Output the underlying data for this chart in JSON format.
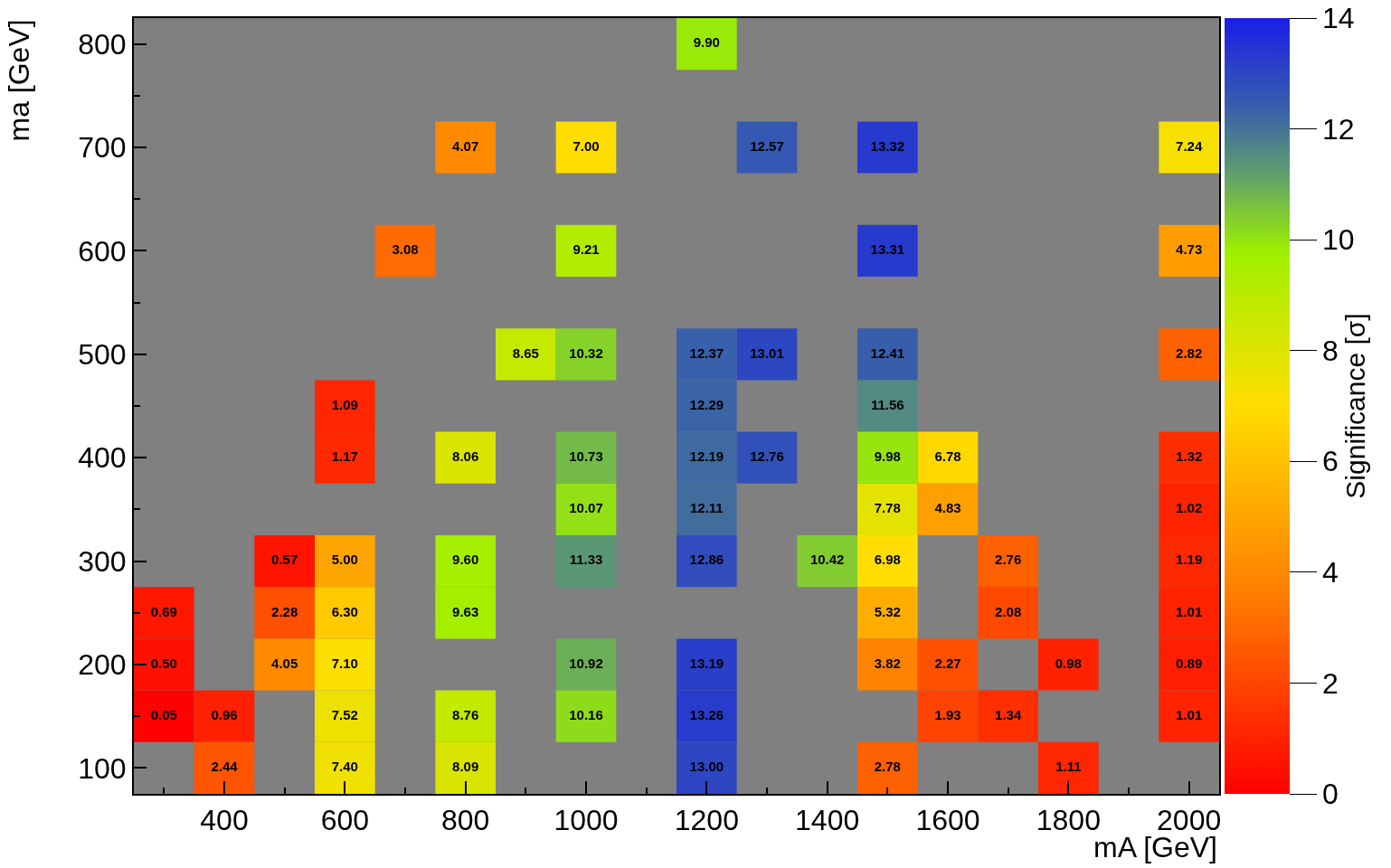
{
  "chart_data": {
    "type": "heatmap",
    "xlabel": "mA [GeV]",
    "ylabel": "ma [GeV]",
    "clabel": "Significance [σ]",
    "x": [
      300,
      400,
      500,
      600,
      700,
      800,
      900,
      1000,
      1100,
      1200,
      1300,
      1400,
      1500,
      1600,
      1700,
      1800,
      1900,
      2000
    ],
    "y": [
      800,
      700,
      600,
      500,
      450,
      400,
      350,
      300,
      250,
      200,
      150,
      100
    ],
    "xlim": [
      250,
      2050
    ],
    "ylim": [
      75,
      825
    ],
    "xticks": [
      400,
      600,
      800,
      1000,
      1200,
      1400,
      1600,
      1800,
      2000
    ],
    "yticks": [
      100,
      200,
      300,
      400,
      500,
      600,
      700,
      800
    ],
    "clim": [
      0,
      14
    ],
    "cticks": [
      0,
      2,
      4,
      6,
      8,
      10,
      12,
      14
    ],
    "data_labels": true,
    "cell_labels": [
      [
        null,
        null,
        null,
        null,
        null,
        null,
        null,
        null,
        null,
        "9.90",
        null,
        null,
        null,
        null,
        null,
        null,
        null,
        null
      ],
      [
        null,
        null,
        null,
        null,
        null,
        "4.07",
        null,
        "7.00",
        null,
        null,
        "12.57",
        null,
        "13.32",
        null,
        null,
        null,
        null,
        "7.24"
      ],
      [
        null,
        null,
        null,
        null,
        "3.08",
        null,
        null,
        "9.21",
        null,
        null,
        null,
        null,
        "13.31",
        null,
        null,
        null,
        null,
        "4.73"
      ],
      [
        null,
        null,
        null,
        null,
        null,
        null,
        "8.65",
        "10.32",
        null,
        "12.37",
        "13.01",
        null,
        "12.41",
        null,
        null,
        null,
        null,
        "2.82"
      ],
      [
        null,
        null,
        null,
        "1.09",
        null,
        null,
        null,
        null,
        null,
        "12.29",
        null,
        null,
        "11.56",
        null,
        null,
        null,
        null,
        null
      ],
      [
        null,
        null,
        null,
        "1.17",
        null,
        "8.06",
        null,
        "10.73",
        null,
        "12.19",
        "12.76",
        null,
        "9.98",
        "6.78",
        null,
        null,
        null,
        "1.32"
      ],
      [
        null,
        null,
        null,
        null,
        null,
        null,
        null,
        "10.07",
        null,
        "12.11",
        null,
        null,
        "7.78",
        "4.83",
        null,
        null,
        null,
        "1.02"
      ],
      [
        null,
        null,
        "0.57",
        "5.00",
        null,
        "9.60",
        null,
        "11.33",
        null,
        "12.86",
        null,
        "10.42",
        "6.98",
        null,
        "2.76",
        null,
        null,
        "1.19"
      ],
      [
        "0.69",
        null,
        "2.28",
        "6.30",
        null,
        "9.63",
        null,
        null,
        null,
        null,
        null,
        null,
        "5.32",
        null,
        "2.08",
        null,
        null,
        "1.01"
      ],
      [
        "0.50",
        null,
        "4.05",
        "7.10",
        null,
        null,
        null,
        "10.92",
        null,
        "13.19",
        null,
        null,
        "3.82",
        "2.27",
        null,
        "0.98",
        null,
        "0.89"
      ],
      [
        "0.05",
        "0.96",
        null,
        "7.52",
        null,
        "8.76",
        null,
        "10.16",
        null,
        "13.26",
        null,
        null,
        null,
        "1.93",
        "1.34",
        null,
        null,
        "1.01"
      ],
      [
        null,
        "2.44",
        null,
        "7.40",
        null,
        "8.09",
        null,
        null,
        null,
        "13.00",
        null,
        null,
        "2.78",
        null,
        null,
        "1.11",
        null,
        null
      ]
    ],
    "cells": [
      [
        null,
        null,
        null,
        null,
        null,
        null,
        null,
        null,
        null,
        9.9,
        null,
        null,
        null,
        null,
        null,
        null,
        null,
        null
      ],
      [
        null,
        null,
        null,
        null,
        null,
        4.07,
        null,
        7.0,
        null,
        null,
        12.57,
        null,
        13.32,
        null,
        null,
        null,
        null,
        7.24
      ],
      [
        null,
        null,
        null,
        null,
        3.08,
        null,
        null,
        9.21,
        null,
        null,
        null,
        null,
        13.31,
        null,
        null,
        null,
        null,
        4.73
      ],
      [
        null,
        null,
        null,
        null,
        null,
        null,
        8.65,
        10.32,
        null,
        12.37,
        13.01,
        null,
        12.41,
        null,
        null,
        null,
        null,
        2.82
      ],
      [
        null,
        null,
        null,
        1.09,
        null,
        null,
        null,
        null,
        null,
        12.29,
        null,
        null,
        11.56,
        null,
        null,
        null,
        null,
        null
      ],
      [
        null,
        null,
        null,
        1.17,
        null,
        8.06,
        null,
        10.73,
        null,
        12.19,
        12.76,
        null,
        9.98,
        6.78,
        null,
        null,
        null,
        1.32
      ],
      [
        null,
        null,
        null,
        null,
        null,
        null,
        null,
        10.07,
        null,
        12.11,
        null,
        null,
        7.78,
        4.83,
        null,
        null,
        null,
        1.02
      ],
      [
        null,
        null,
        0.57,
        5.0,
        null,
        9.6,
        null,
        11.33,
        null,
        12.86,
        null,
        10.42,
        6.98,
        null,
        2.76,
        null,
        null,
        1.19
      ],
      [
        0.69,
        null,
        2.28,
        6.3,
        null,
        9.63,
        null,
        null,
        null,
        null,
        null,
        null,
        5.32,
        null,
        2.08,
        null,
        null,
        1.01
      ],
      [
        0.5,
        null,
        4.05,
        7.1,
        null,
        null,
        null,
        10.92,
        null,
        13.19,
        null,
        null,
        3.82,
        2.27,
        null,
        0.98,
        null,
        0.89
      ],
      [
        0.05,
        0.96,
        null,
        7.52,
        null,
        8.76,
        null,
        10.16,
        null,
        13.26,
        null,
        null,
        null,
        1.93,
        1.34,
        null,
        null,
        1.01
      ],
      [
        null,
        2.44,
        null,
        7.4,
        null,
        8.09,
        null,
        null,
        null,
        13.0,
        null,
        null,
        2.78,
        null,
        null,
        1.11,
        null,
        null
      ]
    ]
  }
}
